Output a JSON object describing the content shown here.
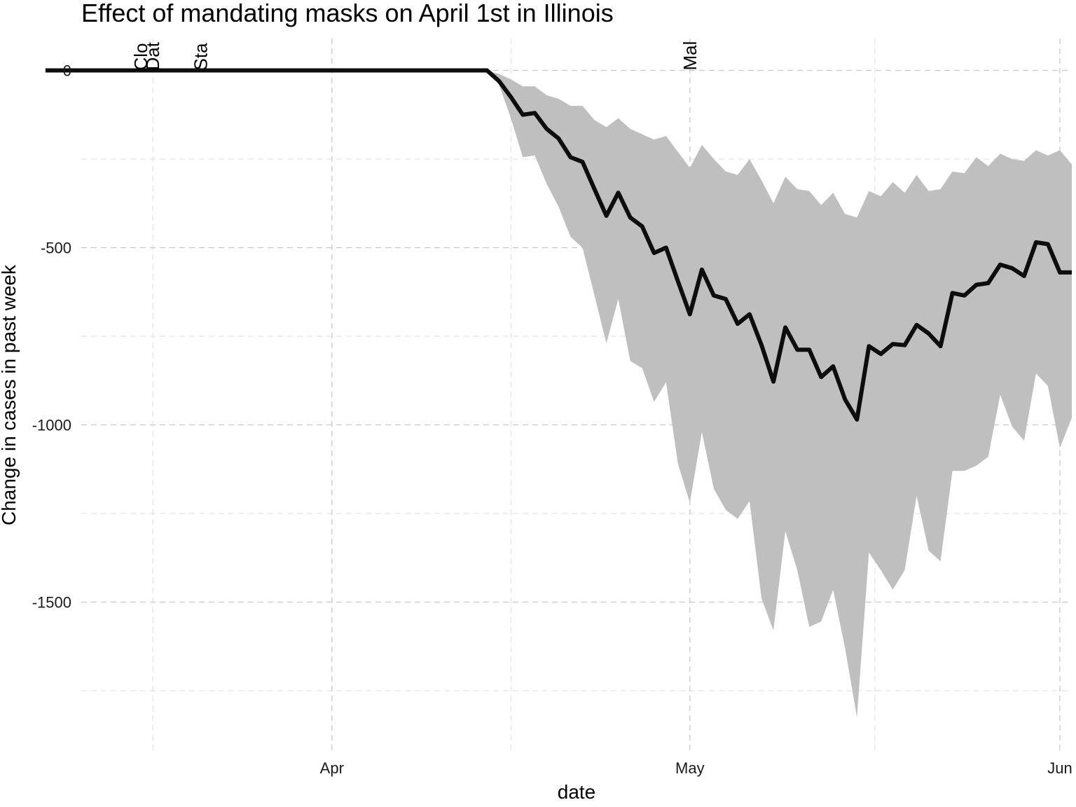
{
  "chart_data": {
    "type": "area",
    "title": "Effect of mandating masks on April 1st in Illinois",
    "xlabel": "date",
    "ylabel": "Change in cases in past week",
    "x_axis": {
      "type": "date",
      "range": [
        "2020-03-11",
        "2020-06-02"
      ],
      "ticks": [
        {
          "date": "2020-04-01",
          "label": "Apr"
        },
        {
          "date": "2020-05-01",
          "label": "May"
        },
        {
          "date": "2020-06-01",
          "label": "Jun"
        }
      ]
    },
    "y_axis": {
      "range": [
        -1920,
        90
      ],
      "ticks": [
        {
          "value": 0,
          "label": "0"
        },
        {
          "value": -500,
          "label": "-500"
        },
        {
          "value": -1000,
          "label": "-1000"
        },
        {
          "value": -1500,
          "label": "-1500"
        }
      ]
    },
    "grid": true,
    "legend": "none",
    "events": [
      {
        "date": "2020-03-16",
        "label": "Clo"
      },
      {
        "date": "2020-03-17",
        "label": "Dat"
      },
      {
        "date": "2020-03-21",
        "label": "Sta"
      },
      {
        "date": "2020-05-01",
        "label": "Mal"
      }
    ],
    "series": [
      {
        "estimate": [
          [
            "2020-03-08",
            0
          ],
          [
            "2020-04-14",
            0
          ],
          [
            "2020-04-15",
            -30
          ],
          [
            "2020-04-16",
            -75
          ],
          [
            "2020-04-17",
            -125
          ],
          [
            "2020-04-18",
            -120
          ],
          [
            "2020-04-19",
            -165
          ],
          [
            "2020-04-20",
            -192
          ],
          [
            "2020-04-21",
            -245
          ],
          [
            "2020-04-22",
            -258
          ],
          [
            "2020-04-23",
            -335
          ],
          [
            "2020-04-24",
            -410
          ],
          [
            "2020-04-25",
            -345
          ],
          [
            "2020-04-26",
            -415
          ],
          [
            "2020-04-27",
            -440
          ],
          [
            "2020-04-28",
            -515
          ],
          [
            "2020-04-29",
            -500
          ],
          [
            "2020-04-30",
            -595
          ],
          [
            "2020-05-01",
            -688
          ],
          [
            "2020-05-02",
            -562
          ],
          [
            "2020-05-03",
            -635
          ],
          [
            "2020-05-04",
            -645
          ],
          [
            "2020-05-05",
            -715
          ],
          [
            "2020-05-06",
            -688
          ],
          [
            "2020-05-07",
            -775
          ],
          [
            "2020-05-08",
            -878
          ],
          [
            "2020-05-09",
            -725
          ],
          [
            "2020-05-10",
            -788
          ],
          [
            "2020-05-11",
            -788
          ],
          [
            "2020-05-12",
            -865
          ],
          [
            "2020-05-13",
            -835
          ],
          [
            "2020-05-14",
            -928
          ],
          [
            "2020-05-15",
            -985
          ],
          [
            "2020-05-16",
            -778
          ],
          [
            "2020-05-17",
            -800
          ],
          [
            "2020-05-18",
            -772
          ],
          [
            "2020-05-19",
            -775
          ],
          [
            "2020-05-20",
            -718
          ],
          [
            "2020-05-21",
            -742
          ],
          [
            "2020-05-22",
            -778
          ],
          [
            "2020-05-23",
            -628
          ],
          [
            "2020-05-24",
            -635
          ],
          [
            "2020-05-25",
            -605
          ],
          [
            "2020-05-26",
            -600
          ],
          [
            "2020-05-27",
            -548
          ],
          [
            "2020-05-28",
            -558
          ],
          [
            "2020-05-29",
            -580
          ],
          [
            "2020-05-30",
            -485
          ],
          [
            "2020-05-31",
            -490
          ],
          [
            "2020-06-01",
            -570
          ],
          [
            "2020-06-02",
            -570
          ]
        ],
        "upper": [
          [
            "2020-04-14",
            0
          ],
          [
            "2020-04-15",
            -10
          ],
          [
            "2020-04-16",
            -25
          ],
          [
            "2020-04-17",
            -45
          ],
          [
            "2020-04-18",
            -45
          ],
          [
            "2020-04-19",
            -70
          ],
          [
            "2020-04-20",
            -80
          ],
          [
            "2020-04-21",
            -100
          ],
          [
            "2020-04-22",
            -100
          ],
          [
            "2020-04-23",
            -140
          ],
          [
            "2020-04-24",
            -160
          ],
          [
            "2020-04-25",
            -135
          ],
          [
            "2020-04-26",
            -165
          ],
          [
            "2020-04-27",
            -180
          ],
          [
            "2020-04-28",
            -195
          ],
          [
            "2020-04-29",
            -185
          ],
          [
            "2020-04-30",
            -230
          ],
          [
            "2020-05-01",
            -275
          ],
          [
            "2020-05-02",
            -210
          ],
          [
            "2020-05-03",
            -250
          ],
          [
            "2020-05-04",
            -285
          ],
          [
            "2020-05-05",
            -295
          ],
          [
            "2020-05-06",
            -250
          ],
          [
            "2020-05-07",
            -310
          ],
          [
            "2020-05-08",
            -375
          ],
          [
            "2020-05-09",
            -300
          ],
          [
            "2020-05-10",
            -335
          ],
          [
            "2020-05-11",
            -340
          ],
          [
            "2020-05-12",
            -380
          ],
          [
            "2020-05-13",
            -345
          ],
          [
            "2020-05-14",
            -405
          ],
          [
            "2020-05-15",
            -415
          ],
          [
            "2020-05-16",
            -340
          ],
          [
            "2020-05-17",
            -355
          ],
          [
            "2020-05-18",
            -315
          ],
          [
            "2020-05-19",
            -345
          ],
          [
            "2020-05-20",
            -295
          ],
          [
            "2020-05-21",
            -340
          ],
          [
            "2020-05-22",
            -335
          ],
          [
            "2020-05-23",
            -285
          ],
          [
            "2020-05-24",
            -290
          ],
          [
            "2020-05-25",
            -245
          ],
          [
            "2020-05-26",
            -270
          ],
          [
            "2020-05-27",
            -235
          ],
          [
            "2020-05-28",
            -250
          ],
          [
            "2020-05-29",
            -255
          ],
          [
            "2020-05-30",
            -225
          ],
          [
            "2020-05-31",
            -240
          ],
          [
            "2020-06-01",
            -225
          ],
          [
            "2020-06-02",
            -265
          ]
        ],
        "lower": [
          [
            "2020-04-14",
            0
          ],
          [
            "2020-04-15",
            -40
          ],
          [
            "2020-04-16",
            -135
          ],
          [
            "2020-04-17",
            -245
          ],
          [
            "2020-04-18",
            -240
          ],
          [
            "2020-04-19",
            -320
          ],
          [
            "2020-04-20",
            -385
          ],
          [
            "2020-04-21",
            -470
          ],
          [
            "2020-04-22",
            -500
          ],
          [
            "2020-04-23",
            -635
          ],
          [
            "2020-04-24",
            -770
          ],
          [
            "2020-04-25",
            -645
          ],
          [
            "2020-04-26",
            -820
          ],
          [
            "2020-04-27",
            -840
          ],
          [
            "2020-04-28",
            -935
          ],
          [
            "2020-04-29",
            -880
          ],
          [
            "2020-04-30",
            -1110
          ],
          [
            "2020-05-01",
            -1220
          ],
          [
            "2020-05-02",
            -1020
          ],
          [
            "2020-05-03",
            -1180
          ],
          [
            "2020-05-04",
            -1240
          ],
          [
            "2020-05-05",
            -1265
          ],
          [
            "2020-05-06",
            -1215
          ],
          [
            "2020-05-07",
            -1490
          ],
          [
            "2020-05-08",
            -1580
          ],
          [
            "2020-05-09",
            -1300
          ],
          [
            "2020-05-10",
            -1410
          ],
          [
            "2020-05-11",
            -1570
          ],
          [
            "2020-05-12",
            -1555
          ],
          [
            "2020-05-13",
            -1465
          ],
          [
            "2020-05-14",
            -1630
          ],
          [
            "2020-05-15",
            -1825
          ],
          [
            "2020-05-16",
            -1360
          ],
          [
            "2020-05-17",
            -1410
          ],
          [
            "2020-05-18",
            -1465
          ],
          [
            "2020-05-19",
            -1410
          ],
          [
            "2020-05-20",
            -1200
          ],
          [
            "2020-05-21",
            -1355
          ],
          [
            "2020-05-22",
            -1385
          ],
          [
            "2020-05-23",
            -1130
          ],
          [
            "2020-05-24",
            -1130
          ],
          [
            "2020-05-25",
            -1115
          ],
          [
            "2020-05-26",
            -1090
          ],
          [
            "2020-05-27",
            -915
          ],
          [
            "2020-05-28",
            -1005
          ],
          [
            "2020-05-29",
            -1045
          ],
          [
            "2020-05-30",
            -855
          ],
          [
            "2020-05-31",
            -890
          ],
          [
            "2020-06-01",
            -1065
          ],
          [
            "2020-06-02",
            -980
          ]
        ]
      }
    ]
  }
}
